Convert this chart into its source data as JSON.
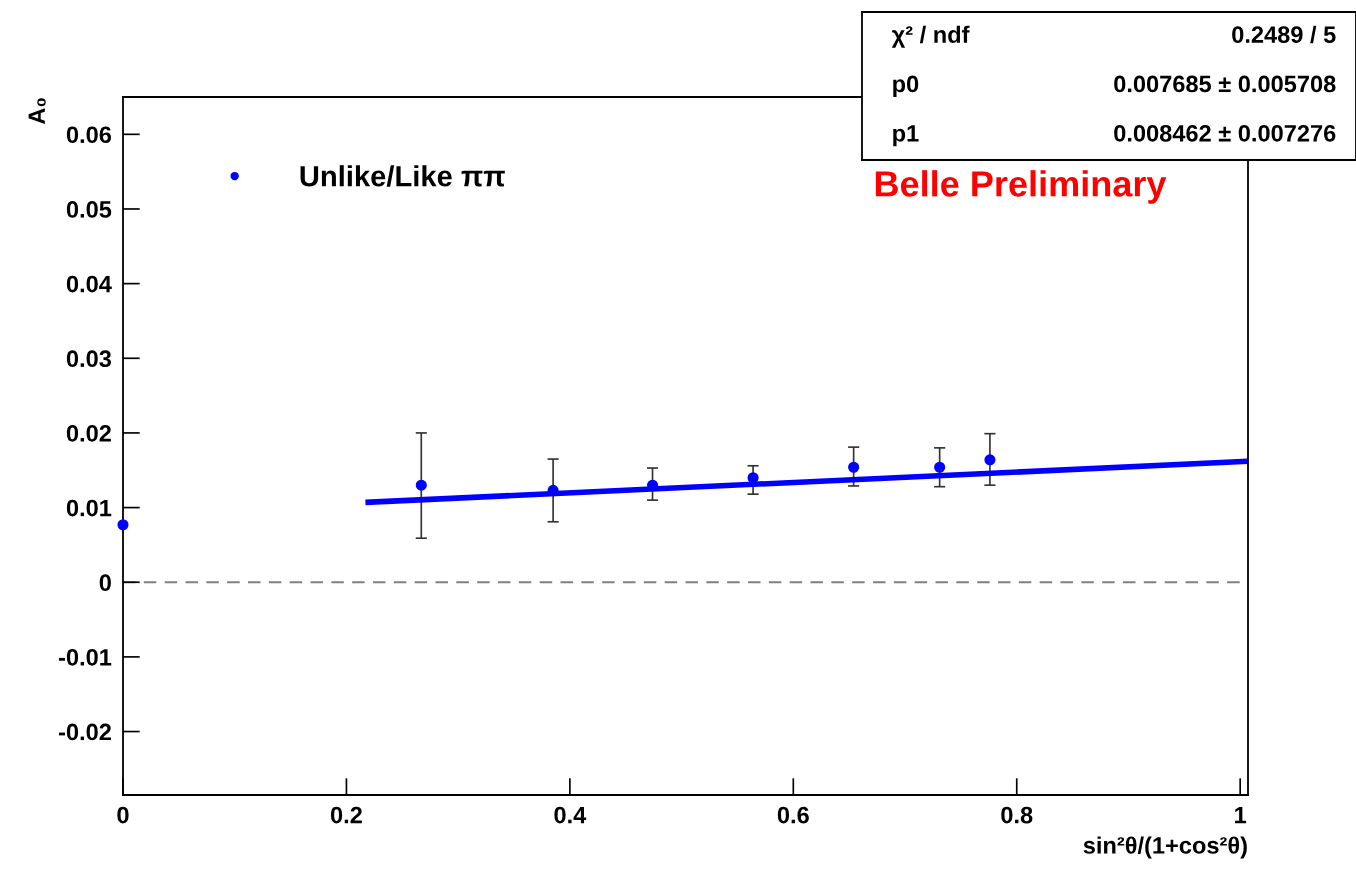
{
  "chart_data": {
    "type": "scatter",
    "xlabel": "sin²θ/(1+cos²θ)",
    "ylabel": "A₀",
    "xlim": [
      0,
      1.007
    ],
    "ylim": [
      -0.0285,
      0.065
    ],
    "xticks": [
      0,
      0.2,
      0.4,
      0.6,
      0.8,
      1
    ],
    "yticks": [
      -0.02,
      -0.01,
      0,
      0.01,
      0.02,
      0.03,
      0.04,
      0.05,
      0.06
    ],
    "grid": false,
    "legend": "top left",
    "marker": "circle",
    "series": [
      {
        "name": "Unlike/Like ππ",
        "color": "#0000ff",
        "x": [
          0,
          0.267,
          0.385,
          0.474,
          0.564,
          0.654,
          0.731,
          0.776
        ],
        "values": [
          0.0077,
          0.013,
          0.0123,
          0.013,
          0.014,
          0.0154,
          0.0154,
          0.0164
        ],
        "errors": [
          null,
          [
            0.0059,
            0.02
          ],
          [
            0.0081,
            0.0165
          ],
          [
            0.011,
            0.0153
          ],
          [
            0.0118,
            0.0156
          ],
          [
            0.0129,
            0.0181
          ],
          [
            0.0128,
            0.018
          ],
          [
            0.013,
            0.0199
          ]
        ]
      },
      {
        "type": "line",
        "marker": "none",
        "color": "#0000ff",
        "x": [
          0.217,
          1.007
        ],
        "values": [
          0.0107,
          0.0162
        ]
      }
    ],
    "ref_lines": [
      {
        "axis": "y",
        "value": 0,
        "color": "#808080",
        "line_style": "dashed"
      }
    ],
    "annotations": [
      "χ² / ndf",
      "0.2489 / 5",
      "p0",
      "0.007685 ± 0.005708",
      "p1",
      "0.008462 ± 0.007276",
      "Belle Preliminary"
    ]
  }
}
